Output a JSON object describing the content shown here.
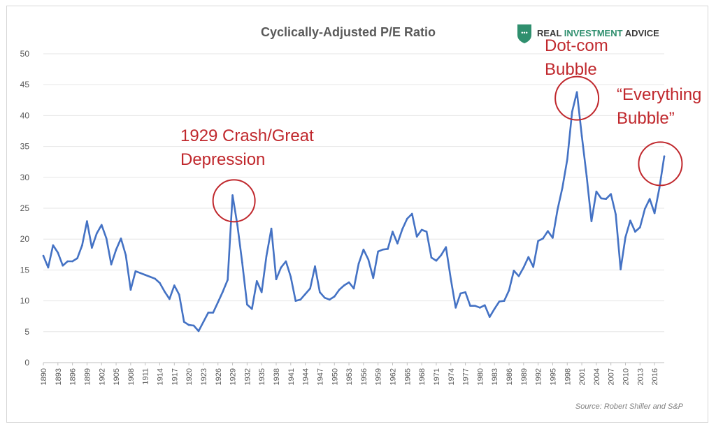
{
  "chart_data": {
    "type": "line",
    "title": "Cyclically-Adjusted P/E Ratio",
    "xlabel": "",
    "ylabel": "",
    "xlim": [
      1890,
      2018
    ],
    "ylim": [
      0,
      50
    ],
    "y_ticks": [
      0,
      5,
      10,
      15,
      20,
      25,
      30,
      35,
      40,
      45,
      50
    ],
    "x_tick_labels": [
      "1890",
      "1893",
      "1896",
      "1899",
      "1902",
      "1905",
      "1908",
      "1911",
      "1914",
      "1917",
      "1920",
      "1923",
      "1926",
      "1929",
      "1932",
      "1935",
      "1938",
      "1941",
      "1944",
      "1947",
      "1950",
      "1953",
      "1956",
      "1959",
      "1962",
      "1965",
      "1968",
      "1971",
      "1974",
      "1977",
      "1980",
      "1983",
      "1986",
      "1989",
      "1992",
      "1995",
      "1998",
      "2001",
      "2004",
      "2007",
      "2010",
      "2013",
      "2016"
    ],
    "grid": "horizontal",
    "series": [
      {
        "color": "#4472c4",
        "x": [
          1890,
          1891,
          1892,
          1893,
          1894,
          1895,
          1896,
          1897,
          1898,
          1899,
          1900,
          1901,
          1902,
          1903,
          1904,
          1905,
          1906,
          1907,
          1908,
          1909,
          1910,
          1911,
          1912,
          1913,
          1914,
          1915,
          1916,
          1917,
          1918,
          1919,
          1920,
          1921,
          1922,
          1923,
          1924,
          1925,
          1926,
          1927,
          1928,
          1929,
          1930,
          1931,
          1932,
          1933,
          1934,
          1935,
          1936,
          1937,
          1938,
          1939,
          1940,
          1941,
          1942,
          1943,
          1944,
          1945,
          1946,
          1947,
          1948,
          1949,
          1950,
          1951,
          1952,
          1953,
          1954,
          1955,
          1956,
          1957,
          1958,
          1959,
          1960,
          1961,
          1962,
          1963,
          1964,
          1965,
          1966,
          1967,
          1968,
          1969,
          1970,
          1971,
          1972,
          1973,
          1974,
          1975,
          1976,
          1977,
          1978,
          1979,
          1980,
          1981,
          1982,
          1983,
          1984,
          1985,
          1986,
          1987,
          1988,
          1989,
          1990,
          1991,
          1992,
          1993,
          1994,
          1995,
          1996,
          1997,
          1998,
          1999,
          2000,
          2001,
          2002,
          2003,
          2004,
          2005,
          2006,
          2007,
          2008,
          2009,
          2010,
          2011,
          2012,
          2013,
          2014,
          2015,
          2016,
          2017,
          2018
        ],
        "values": [
          17.3,
          15.4,
          19.0,
          17.8,
          15.7,
          16.4,
          16.4,
          16.9,
          19.0,
          22.9,
          18.6,
          20.9,
          22.3,
          20.1,
          15.9,
          18.3,
          20.1,
          17.4,
          11.8,
          14.8,
          14.5,
          14.2,
          13.9,
          13.6,
          12.9,
          11.5,
          10.3,
          12.5,
          11.0,
          6.6,
          6.1,
          6.0,
          5.1,
          6.6,
          8.1,
          8.1,
          9.8,
          11.5,
          13.4,
          27.1,
          22.3,
          16.2,
          9.4,
          8.7,
          13.2,
          11.4,
          17.3,
          21.7,
          13.5,
          15.4,
          16.4,
          13.9,
          10.0,
          10.2,
          11.1,
          12.0,
          15.6,
          11.4,
          10.5,
          10.2,
          10.7,
          11.8,
          12.5,
          13.0,
          12.0,
          16.0,
          18.3,
          16.7,
          13.7,
          18.0,
          18.3,
          18.4,
          21.2,
          19.3,
          21.6,
          23.3,
          24.1,
          20.4,
          21.5,
          21.2,
          17.0,
          16.5,
          17.4,
          18.7,
          13.5,
          8.9,
          11.2,
          11.4,
          9.2,
          9.2,
          8.9,
          9.3,
          7.4,
          8.7,
          9.9,
          10.0,
          11.7,
          14.9,
          14.0,
          15.4,
          17.1,
          15.5,
          19.7,
          20.1,
          21.3,
          20.2,
          24.8,
          28.3,
          32.9,
          40.6,
          43.8,
          36.7,
          30.2,
          22.9,
          27.7,
          26.6,
          26.5,
          27.3,
          24.0,
          15.1,
          20.3,
          23.0,
          21.2,
          21.9,
          24.9,
          26.5,
          24.2,
          28.3,
          33.4
        ]
      }
    ],
    "annotations": [
      {
        "lines": [
          "1929 Crash/Great",
          "Depression"
        ],
        "x": 1929.3,
        "y": 26.2
      },
      {
        "lines": [
          "Dot-com",
          "Bubble"
        ],
        "x": 2000,
        "y": 42.8
      },
      {
        "lines": [
          "“Everything",
          "Bubble”"
        ],
        "x": 2017.2,
        "y": 32.2
      }
    ]
  },
  "brand": {
    "name_part1": "REAL ",
    "name_part2": "INVESTMENT",
    "name_part3": " ADVICE",
    "color_dark": "#3a3a3a",
    "color_accent": "#2f8f6e",
    "logo_icon": "shield-icon"
  },
  "source_note": "Source: Robert Shiller and S&P"
}
